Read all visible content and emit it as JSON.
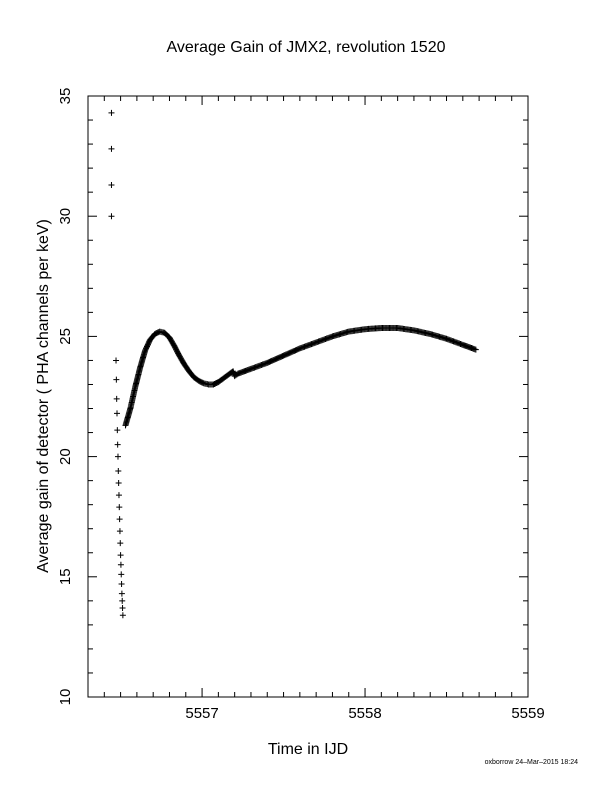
{
  "chart_data": {
    "type": "scatter",
    "title": "Average Gain of JMX2, revolution 1520",
    "xlabel": "Time in IJD",
    "ylabel": "Average gain of detector ( PHA channels per keV)",
    "xlim": [
      5556.3,
      5559.0
    ],
    "ylim": [
      10,
      35
    ],
    "xticks": [
      5557,
      5558,
      5559
    ],
    "yticks": [
      10,
      15,
      20,
      25,
      30,
      35
    ],
    "marker": "+",
    "grid": false,
    "colors": {
      "marker": "#000000",
      "axes": "#000000"
    },
    "series": [
      {
        "points": [
          [
            5556.444,
            34.3
          ],
          [
            5556.444,
            32.8
          ],
          [
            5556.444,
            31.3
          ],
          [
            5556.444,
            30.0
          ],
          [
            5556.472,
            24.0
          ],
          [
            5556.474,
            23.2
          ],
          [
            5556.476,
            22.4
          ],
          [
            5556.478,
            21.8
          ],
          [
            5556.48,
            21.1
          ],
          [
            5556.482,
            20.5
          ],
          [
            5556.484,
            20.0
          ],
          [
            5556.486,
            19.4
          ],
          [
            5556.488,
            18.9
          ],
          [
            5556.49,
            18.4
          ],
          [
            5556.492,
            17.9
          ],
          [
            5556.494,
            17.4
          ],
          [
            5556.496,
            16.9
          ],
          [
            5556.498,
            16.4
          ],
          [
            5556.5,
            15.9
          ],
          [
            5556.502,
            15.5
          ],
          [
            5556.504,
            15.1
          ],
          [
            5556.506,
            14.7
          ],
          [
            5556.508,
            14.3
          ],
          [
            5556.51,
            14.0
          ],
          [
            5556.512,
            13.7
          ],
          [
            5556.514,
            13.4
          ]
        ]
      },
      {
        "points": [
          [
            5556.53,
            21.3
          ],
          [
            5556.56,
            22.0
          ],
          [
            5556.59,
            22.9
          ],
          [
            5556.62,
            23.7
          ],
          [
            5556.65,
            24.4
          ],
          [
            5556.68,
            24.85
          ],
          [
            5556.71,
            25.1
          ],
          [
            5556.74,
            25.2
          ],
          [
            5556.77,
            25.15
          ],
          [
            5556.8,
            24.95
          ],
          [
            5556.83,
            24.6
          ],
          [
            5556.86,
            24.2
          ],
          [
            5556.89,
            23.85
          ],
          [
            5556.92,
            23.55
          ],
          [
            5556.95,
            23.3
          ],
          [
            5556.98,
            23.15
          ],
          [
            5557.01,
            23.05
          ],
          [
            5557.04,
            23.0
          ],
          [
            5557.07,
            23.0
          ],
          [
            5557.1,
            23.1
          ],
          [
            5557.13,
            23.25
          ],
          [
            5557.16,
            23.4
          ],
          [
            5557.19,
            23.55
          ],
          [
            5557.2,
            23.35
          ],
          [
            5557.22,
            23.45
          ],
          [
            5557.3,
            23.65
          ],
          [
            5557.4,
            23.9
          ],
          [
            5557.5,
            24.2
          ],
          [
            5557.6,
            24.5
          ],
          [
            5557.7,
            24.75
          ],
          [
            5557.8,
            25.0
          ],
          [
            5557.9,
            25.2
          ],
          [
            5558.0,
            25.3
          ],
          [
            5558.1,
            25.35
          ],
          [
            5558.2,
            25.35
          ],
          [
            5558.3,
            25.25
          ],
          [
            5558.4,
            25.1
          ],
          [
            5558.5,
            24.9
          ],
          [
            5558.6,
            24.65
          ],
          [
            5558.68,
            24.45
          ]
        ]
      }
    ]
  },
  "footer": "oxborrow 24–Mar–2015 18:24"
}
